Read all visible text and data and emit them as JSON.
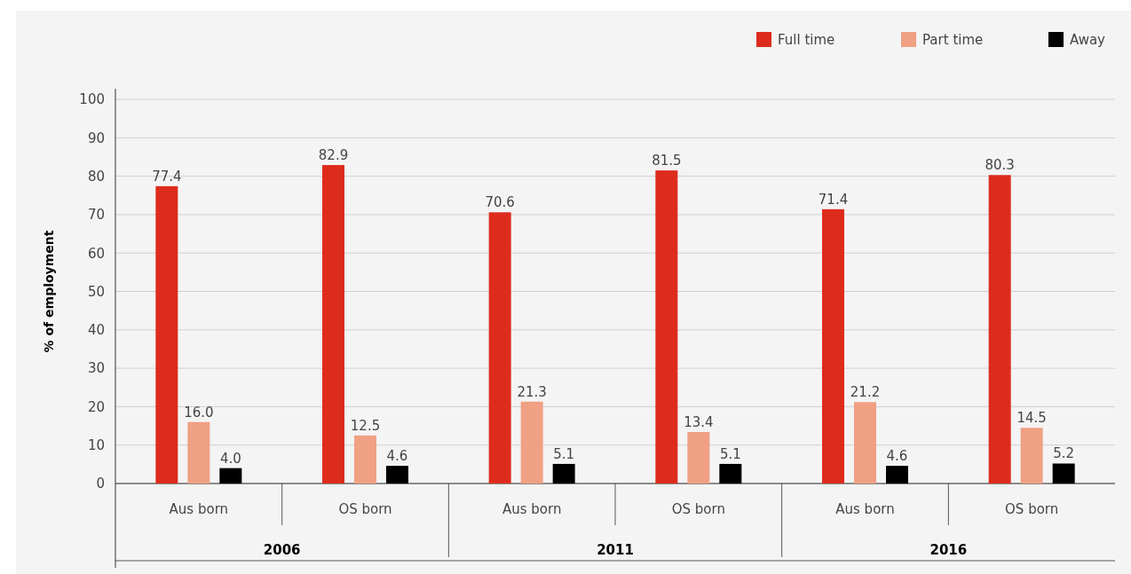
{
  "chart_data": {
    "type": "bar",
    "ylabel": "% of employment",
    "categories": [
      "Aus born",
      "OS born",
      "Aus born",
      "OS born",
      "Aus born",
      "OS born"
    ],
    "series": [
      {
        "name": "Full time",
        "color": "#dd2c1c",
        "values": [
          77.4,
          82.9,
          70.6,
          81.5,
          71.4,
          80.3
        ],
        "value_labels": [
          "77.4",
          "82.9",
          "70.6",
          "81.5",
          "71.4",
          "80.3"
        ]
      },
      {
        "name": "Part time",
        "color": "#f0a083",
        "values": [
          16.0,
          12.5,
          21.3,
          13.4,
          21.2,
          14.5
        ],
        "value_labels": [
          "16.0",
          "12.5",
          "21.3",
          "13.4",
          "21.2",
          "14.5"
        ]
      },
      {
        "name": "Away",
        "color": "#000000",
        "values": [
          4.0,
          4.6,
          5.1,
          5.1,
          4.6,
          5.2
        ],
        "value_labels": [
          "4.0",
          "4.6",
          "5.1",
          "5.1",
          "4.6",
          "5.2"
        ]
      }
    ],
    "annotations": [
      "2006",
      "2011",
      "2016"
    ],
    "ylim": [
      0,
      100
    ],
    "yticks": [
      0,
      10,
      20,
      30,
      40,
      50,
      60,
      70,
      80,
      90,
      100
    ],
    "grid": "y",
    "legend": "top right"
  }
}
